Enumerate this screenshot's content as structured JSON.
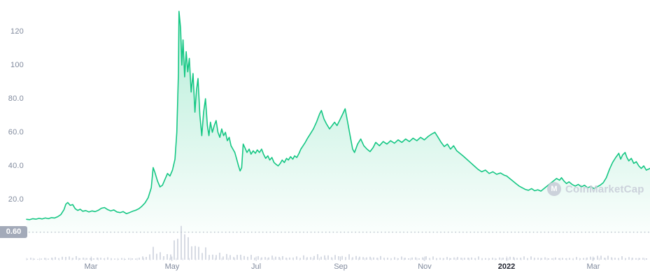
{
  "chart_data": {
    "type": "area",
    "title": "",
    "xlabel": "",
    "ylabel": "",
    "grid": false,
    "legend": false,
    "y_axis": {
      "range": [
        0,
        140
      ],
      "ticks": [
        {
          "label": "120",
          "value": 120
        },
        {
          "label": "100",
          "value": 100
        },
        {
          "label": "80.0",
          "value": 80
        },
        {
          "label": "60.0",
          "value": 60
        },
        {
          "label": "40.0",
          "value": 40
        },
        {
          "label": "20.0",
          "value": 20
        }
      ]
    },
    "x_axis": {
      "ticks": [
        {
          "label": "Mar",
          "pos": 0.1036,
          "emphasis": false
        },
        {
          "label": "May",
          "pos": 0.2331,
          "emphasis": false
        },
        {
          "label": "Jul",
          "pos": 0.3682,
          "emphasis": false
        },
        {
          "label": "Sep",
          "pos": 0.5034,
          "emphasis": false
        },
        {
          "label": "Nov",
          "pos": 0.6385,
          "emphasis": false
        },
        {
          "label": "2022",
          "pos": 0.7703,
          "emphasis": true
        },
        {
          "label": "Mar",
          "pos": 0.9088,
          "emphasis": false
        }
      ]
    },
    "baseline": {
      "label": "0.60",
      "value": 0.6
    },
    "watermark": {
      "text": "CoinMarketCap"
    },
    "colors": {
      "line": "#16c784",
      "fill": "#16c784",
      "volume": "#d6dae3",
      "axis_text": "#808a9d",
      "year_text": "#222531",
      "dotted": "#b3bac6",
      "minor_tick": "#d8dce5",
      "major_tick": "#c6ccd8",
      "badge_bg": "#a3aab9",
      "badge_text": "#ffffff",
      "watermark": "#c9ced9"
    },
    "price": {
      "points": [
        [
          0.0,
          8.2
        ],
        [
          0.005,
          8.0
        ],
        [
          0.01,
          8.6
        ],
        [
          0.015,
          8.3
        ],
        [
          0.02,
          8.8
        ],
        [
          0.025,
          8.4
        ],
        [
          0.03,
          9.0
        ],
        [
          0.035,
          8.6
        ],
        [
          0.04,
          9.2
        ],
        [
          0.045,
          9.0
        ],
        [
          0.05,
          9.8
        ],
        [
          0.055,
          11.0
        ],
        [
          0.06,
          14.0
        ],
        [
          0.063,
          17.2
        ],
        [
          0.066,
          18.2
        ],
        [
          0.07,
          16.5
        ],
        [
          0.074,
          17.0
        ],
        [
          0.078,
          14.5
        ],
        [
          0.082,
          13.5
        ],
        [
          0.086,
          14.2
        ],
        [
          0.09,
          13.0
        ],
        [
          0.095,
          13.4
        ],
        [
          0.1,
          12.6
        ],
        [
          0.105,
          13.2
        ],
        [
          0.11,
          12.8
        ],
        [
          0.115,
          13.6
        ],
        [
          0.12,
          14.8
        ],
        [
          0.125,
          15.2
        ],
        [
          0.13,
          14.0
        ],
        [
          0.135,
          13.2
        ],
        [
          0.14,
          13.8
        ],
        [
          0.145,
          12.6
        ],
        [
          0.15,
          12.2
        ],
        [
          0.155,
          12.8
        ],
        [
          0.16,
          11.6
        ],
        [
          0.165,
          12.2
        ],
        [
          0.17,
          13.0
        ],
        [
          0.175,
          13.6
        ],
        [
          0.18,
          14.5
        ],
        [
          0.185,
          16.0
        ],
        [
          0.19,
          18.0
        ],
        [
          0.195,
          21.0
        ],
        [
          0.2,
          27.0
        ],
        [
          0.203,
          39.0
        ],
        [
          0.206,
          36.0
        ],
        [
          0.21,
          31.0
        ],
        [
          0.214,
          27.5
        ],
        [
          0.218,
          28.5
        ],
        [
          0.222,
          32.0
        ],
        [
          0.226,
          35.5
        ],
        [
          0.23,
          34.0
        ],
        [
          0.234,
          37.5
        ],
        [
          0.238,
          44.0
        ],
        [
          0.241,
          60.0
        ],
        [
          0.2435,
          95.0
        ],
        [
          0.2445,
          132.0
        ],
        [
          0.247,
          122.0
        ],
        [
          0.249,
          100.0
        ],
        [
          0.251,
          115.0
        ],
        [
          0.2535,
          93.0
        ],
        [
          0.256,
          108.0
        ],
        [
          0.2585,
          96.0
        ],
        [
          0.261,
          104.0
        ],
        [
          0.264,
          84.0
        ],
        [
          0.267,
          95.0
        ],
        [
          0.27,
          72.0
        ],
        [
          0.2725,
          85.0
        ],
        [
          0.275,
          92.0
        ],
        [
          0.278,
          70.0
        ],
        [
          0.281,
          58.0
        ],
        [
          0.284,
          72.0
        ],
        [
          0.287,
          80.0
        ],
        [
          0.29,
          64.0
        ],
        [
          0.2925,
          58.0
        ],
        [
          0.295,
          66.0
        ],
        [
          0.298,
          60.0
        ],
        [
          0.301,
          64.0
        ],
        [
          0.304,
          67.0
        ],
        [
          0.307,
          60.0
        ],
        [
          0.31,
          57.0
        ],
        [
          0.313,
          62.0
        ],
        [
          0.316,
          58.0
        ],
        [
          0.319,
          60.0
        ],
        [
          0.322,
          55.0
        ],
        [
          0.325,
          57.0
        ],
        [
          0.328,
          52.0
        ],
        [
          0.331,
          50.0
        ],
        [
          0.334,
          48.0
        ],
        [
          0.337,
          44.0
        ],
        [
          0.34,
          40.0
        ],
        [
          0.3425,
          37.0
        ],
        [
          0.345,
          39.0
        ],
        [
          0.3475,
          53.0
        ],
        [
          0.35,
          51.0
        ],
        [
          0.3535,
          48.0
        ],
        [
          0.357,
          50.0
        ],
        [
          0.36,
          47.0
        ],
        [
          0.3635,
          49.0
        ],
        [
          0.367,
          47.5
        ],
        [
          0.37,
          49.5
        ],
        [
          0.3735,
          48.0
        ],
        [
          0.377,
          50.0
        ],
        [
          0.38,
          47.0
        ],
        [
          0.3835,
          44.5
        ],
        [
          0.387,
          46.0
        ],
        [
          0.39,
          43.5
        ],
        [
          0.3935,
          45.0
        ],
        [
          0.397,
          42.0
        ],
        [
          0.4,
          41.0
        ],
        [
          0.4035,
          40.0
        ],
        [
          0.407,
          41.5
        ],
        [
          0.41,
          43.5
        ],
        [
          0.4135,
          42.0
        ],
        [
          0.417,
          44.5
        ],
        [
          0.42,
          43.5
        ],
        [
          0.4235,
          45.5
        ],
        [
          0.427,
          44.0
        ],
        [
          0.43,
          46.0
        ],
        [
          0.4335,
          45.0
        ],
        [
          0.437,
          47.5
        ],
        [
          0.44,
          50.0
        ],
        [
          0.4435,
          52.0
        ],
        [
          0.447,
          54.0
        ],
        [
          0.45,
          56.0
        ],
        [
          0.455,
          59.0
        ],
        [
          0.46,
          62.0
        ],
        [
          0.465,
          66.0
        ],
        [
          0.47,
          71.0
        ],
        [
          0.473,
          73.0
        ],
        [
          0.477,
          68.0
        ],
        [
          0.481,
          65.0
        ],
        [
          0.486,
          62.0
        ],
        [
          0.49,
          64.0
        ],
        [
          0.494,
          66.0
        ],
        [
          0.498,
          64.0
        ],
        [
          0.502,
          67.0
        ],
        [
          0.506,
          70.0
        ],
        [
          0.511,
          74.0
        ],
        [
          0.515,
          66.0
        ],
        [
          0.519,
          58.0
        ],
        [
          0.523,
          50.0
        ],
        [
          0.526,
          48.0
        ],
        [
          0.531,
          53.0
        ],
        [
          0.536,
          56.0
        ],
        [
          0.541,
          52.0
        ],
        [
          0.546,
          50.0
        ],
        [
          0.551,
          48.5
        ],
        [
          0.556,
          51.0
        ],
        [
          0.56,
          54.0
        ],
        [
          0.566,
          52.0
        ],
        [
          0.572,
          54.5
        ],
        [
          0.578,
          53.0
        ],
        [
          0.584,
          55.0
        ],
        [
          0.59,
          53.5
        ],
        [
          0.596,
          55.5
        ],
        [
          0.602,
          54.0
        ],
        [
          0.608,
          56.0
        ],
        [
          0.614,
          54.5
        ],
        [
          0.62,
          56.5
        ],
        [
          0.626,
          55.0
        ],
        [
          0.632,
          57.0
        ],
        [
          0.638,
          55.5
        ],
        [
          0.644,
          57.5
        ],
        [
          0.65,
          59.0
        ],
        [
          0.655,
          60.0
        ],
        [
          0.66,
          57.0
        ],
        [
          0.665,
          54.0
        ],
        [
          0.67,
          51.5
        ],
        [
          0.675,
          53.0
        ],
        [
          0.68,
          50.0
        ],
        [
          0.685,
          52.0
        ],
        [
          0.69,
          49.0
        ],
        [
          0.695,
          47.5
        ],
        [
          0.7,
          46.0
        ],
        [
          0.706,
          44.0
        ],
        [
          0.712,
          42.0
        ],
        [
          0.718,
          40.0
        ],
        [
          0.724,
          38.0
        ],
        [
          0.73,
          36.5
        ],
        [
          0.736,
          37.5
        ],
        [
          0.742,
          35.5
        ],
        [
          0.748,
          36.5
        ],
        [
          0.754,
          35.0
        ],
        [
          0.76,
          35.8
        ],
        [
          0.766,
          34.5
        ],
        [
          0.77,
          34.0
        ],
        [
          0.775,
          32.5
        ],
        [
          0.78,
          31.0
        ],
        [
          0.785,
          29.5
        ],
        [
          0.79,
          28.0
        ],
        [
          0.795,
          27.0
        ],
        [
          0.8,
          26.0
        ],
        [
          0.805,
          25.5
        ],
        [
          0.81,
          26.5
        ],
        [
          0.815,
          25.2
        ],
        [
          0.82,
          25.8
        ],
        [
          0.825,
          25.0
        ],
        [
          0.83,
          26.5
        ],
        [
          0.835,
          28.0
        ],
        [
          0.84,
          29.5
        ],
        [
          0.845,
          31.0
        ],
        [
          0.85,
          32.5
        ],
        [
          0.855,
          31.5
        ],
        [
          0.858,
          33.0
        ],
        [
          0.862,
          31.0
        ],
        [
          0.866,
          29.5
        ],
        [
          0.87,
          30.5
        ],
        [
          0.875,
          29.0
        ],
        [
          0.88,
          28.0
        ],
        [
          0.885,
          29.0
        ],
        [
          0.89,
          27.5
        ],
        [
          0.895,
          28.5
        ],
        [
          0.9,
          27.0
        ],
        [
          0.905,
          27.8
        ],
        [
          0.91,
          26.5
        ],
        [
          0.915,
          27.5
        ],
        [
          0.92,
          28.5
        ],
        [
          0.925,
          30.0
        ],
        [
          0.93,
          33.0
        ],
        [
          0.935,
          38.0
        ],
        [
          0.94,
          42.0
        ],
        [
          0.945,
          45.0
        ],
        [
          0.95,
          47.5
        ],
        [
          0.953,
          44.0
        ],
        [
          0.956,
          46.5
        ],
        [
          0.96,
          48.0
        ],
        [
          0.963,
          45.0
        ],
        [
          0.966,
          43.0
        ],
        [
          0.97,
          44.5
        ],
        [
          0.974,
          41.5
        ],
        [
          0.978,
          42.5
        ],
        [
          0.982,
          40.0
        ],
        [
          0.986,
          38.5
        ],
        [
          0.99,
          40.0
        ],
        [
          0.994,
          37.5
        ],
        [
          1.0,
          38.5
        ]
      ]
    },
    "volume": {
      "points": [
        [
          0.0,
          4
        ],
        [
          0.02,
          3
        ],
        [
          0.04,
          5
        ],
        [
          0.055,
          6
        ],
        [
          0.065,
          10
        ],
        [
          0.08,
          6
        ],
        [
          0.1,
          4
        ],
        [
          0.12,
          5
        ],
        [
          0.14,
          4
        ],
        [
          0.16,
          3
        ],
        [
          0.18,
          5
        ],
        [
          0.195,
          12
        ],
        [
          0.2,
          22
        ],
        [
          0.205,
          28
        ],
        [
          0.21,
          18
        ],
        [
          0.218,
          14
        ],
        [
          0.226,
          16
        ],
        [
          0.232,
          20
        ],
        [
          0.238,
          45
        ],
        [
          0.243,
          80
        ],
        [
          0.246,
          100
        ],
        [
          0.249,
          70
        ],
        [
          0.253,
          55
        ],
        [
          0.258,
          62
        ],
        [
          0.263,
          40
        ],
        [
          0.268,
          36
        ],
        [
          0.274,
          30
        ],
        [
          0.28,
          26
        ],
        [
          0.287,
          22
        ],
        [
          0.295,
          18
        ],
        [
          0.305,
          15
        ],
        [
          0.315,
          13
        ],
        [
          0.325,
          11
        ],
        [
          0.335,
          10
        ],
        [
          0.345,
          14
        ],
        [
          0.355,
          9
        ],
        [
          0.37,
          8
        ],
        [
          0.385,
          7
        ],
        [
          0.4,
          9
        ],
        [
          0.415,
          6
        ],
        [
          0.43,
          7
        ],
        [
          0.445,
          8
        ],
        [
          0.46,
          10
        ],
        [
          0.47,
          13
        ],
        [
          0.48,
          9
        ],
        [
          0.495,
          10
        ],
        [
          0.505,
          12
        ],
        [
          0.515,
          10
        ],
        [
          0.525,
          9
        ],
        [
          0.54,
          7
        ],
        [
          0.555,
          6
        ],
        [
          0.57,
          7
        ],
        [
          0.585,
          5
        ],
        [
          0.6,
          6
        ],
        [
          0.615,
          5
        ],
        [
          0.63,
          6
        ],
        [
          0.645,
          7
        ],
        [
          0.66,
          6
        ],
        [
          0.675,
          5
        ],
        [
          0.69,
          6
        ],
        [
          0.705,
          5
        ],
        [
          0.72,
          6
        ],
        [
          0.735,
          5
        ],
        [
          0.75,
          4
        ],
        [
          0.765,
          5
        ],
        [
          0.78,
          7
        ],
        [
          0.795,
          6
        ],
        [
          0.81,
          7
        ],
        [
          0.825,
          5
        ],
        [
          0.84,
          4
        ],
        [
          0.855,
          5
        ],
        [
          0.87,
          4
        ],
        [
          0.885,
          5
        ],
        [
          0.9,
          6
        ],
        [
          0.915,
          9
        ],
        [
          0.93,
          8
        ],
        [
          0.945,
          7
        ],
        [
          0.96,
          6
        ],
        [
          0.975,
          5
        ],
        [
          0.99,
          4
        ],
        [
          1.0,
          4
        ]
      ]
    }
  }
}
